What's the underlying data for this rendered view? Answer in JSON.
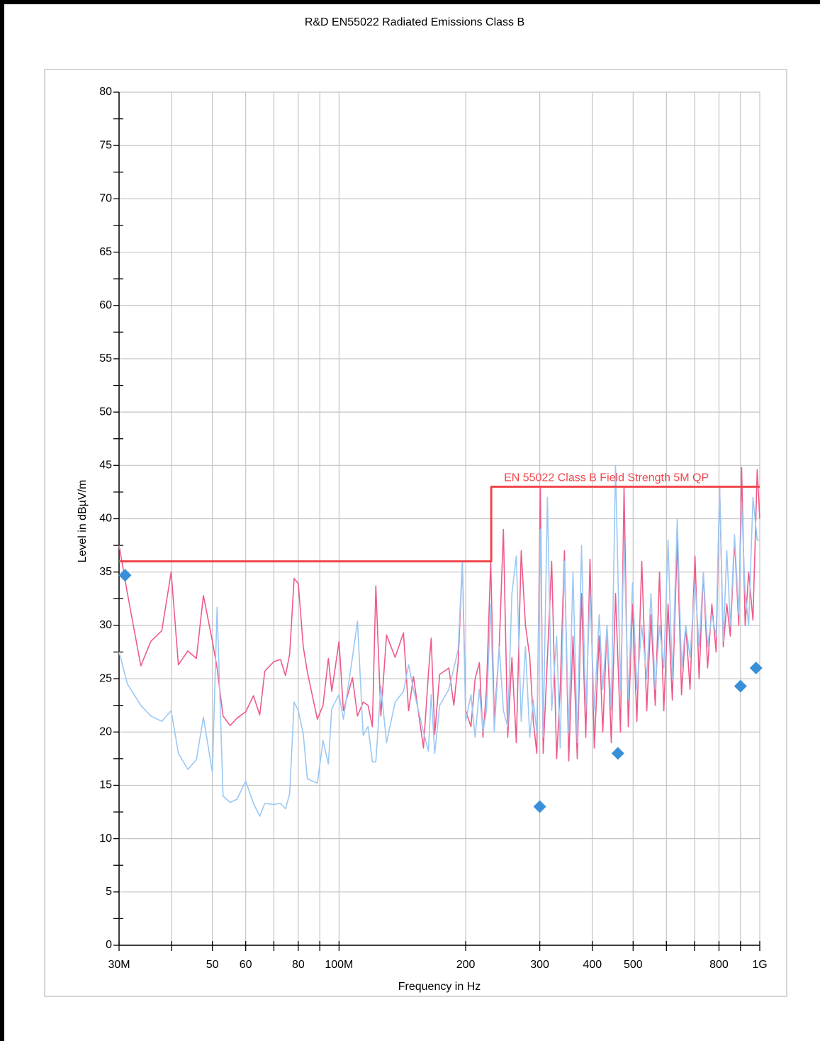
{
  "chart_data": {
    "type": "line",
    "title": "R&D EN55022 Radiated Emissions Class B",
    "xlabel": "Frequency in Hz",
    "ylabel": "Level in dBµV/m",
    "xscale": "log",
    "grid": true,
    "xlim": [
      30000000.0,
      1000000000.0
    ],
    "ylim": [
      0,
      80
    ],
    "xticks": [
      {
        "value": 30000000.0,
        "label": "30M"
      },
      {
        "value": 50000000.0,
        "label": "50"
      },
      {
        "value": 60000000.0,
        "label": "60"
      },
      {
        "value": 80000000.0,
        "label": "80"
      },
      {
        "value": 100000000.0,
        "label": "100M"
      },
      {
        "value": 200000000.0,
        "label": "200"
      },
      {
        "value": 300000000.0,
        "label": "300"
      },
      {
        "value": 400000000.0,
        "label": "400"
      },
      {
        "value": 500000000.0,
        "label": "500"
      },
      {
        "value": 800000000.0,
        "label": "800"
      },
      {
        "value": 1000000000.0,
        "label": "1G"
      }
    ],
    "xminor_ticks": [
      40000000.0,
      70000000.0,
      90000000.0,
      600000000.0,
      700000000.0,
      900000000.0
    ],
    "yticks": [
      0,
      5,
      10,
      15,
      20,
      25,
      30,
      35,
      40,
      45,
      50,
      55,
      60,
      65,
      70,
      75,
      80
    ],
    "yminor_ticks": [
      2.5,
      7.5,
      12.5,
      17.5,
      22.5,
      27.5,
      32.5,
      37.5,
      42.5,
      47.5,
      52.5,
      57.5,
      62.5,
      67.5,
      72.5,
      77.5
    ],
    "traces": {
      "x": [
        30000000.0,
        31400000.0,
        33800000.0,
        35700000.0,
        37900000.0,
        39900000.0,
        41500000.0,
        43700000.0,
        45800000.0,
        47600000.0,
        50000000.0,
        51300000.0,
        53000000.0,
        55100000.0,
        57200000.0,
        60000000.0,
        62600000.0,
        64800000.0,
        66600000.0,
        70000000.0,
        72600000.0,
        74600000.0,
        76300000.0,
        78200000.0,
        80000000.0,
        82200000.0,
        84100000.0,
        88800000.0,
        91600000.0,
        94300000.0,
        96100000.0,
        100000000.0,
        102400000.0,
        107600000.0,
        110600000.0,
        114100000.0,
        117200000.0,
        120000000.0,
        122300000.0,
        125700000.0,
        129700000.0,
        135900000.0,
        142300000.0,
        146300000.0,
        150300000.0,
        158700000.0,
        163100000.0,
        165600000.0,
        168800000.0,
        173500000.0,
        182400000.0,
        187500000.0,
        191900000.0,
        196400000.0,
        200000000.0,
        205800000.0,
        210600000.0,
        215600000.0,
        219800000.0,
        224100000.0,
        229400000.0,
        233900000.0,
        240300000.0,
        245900000.0,
        251700000.0,
        257600000.0,
        263800000.0,
        271000000.0,
        277400000.0,
        284000000.0,
        289600000.0,
        295100000.0,
        300900000.0,
        305600000.0,
        312800000.0,
        320200000.0,
        329000000.0,
        335500000.0,
        343400000.0,
        351500000.0,
        359800000.0,
        368300000.0,
        377000000.0,
        385900000.0,
        395000000.0,
        404300000.0,
        415400000.0,
        423500000.0,
        433500000.0,
        443700000.0,
        454200000.0,
        466700000.0,
        475800000.0,
        487000000.0,
        498500000.0,
        510300000.0,
        524300000.0,
        538800000.0,
        551400000.0,
        564400000.0,
        577800000.0,
        591400000.0,
        605300000.0,
        619600000.0,
        636600000.0,
        651600000.0,
        666900000.0,
        682600000.0,
        701400000.0,
        717500000.0,
        734400000.0,
        751600000.0,
        769300000.0,
        787500000.0,
        802900000.0,
        818800000.0,
        834900000.0,
        851200000.0,
        871000000.0,
        891600000.0,
        905600000.0,
        923300000.0,
        941300000.0,
        963400000.0,
        986100000.0,
        1000000000.0
      ],
      "series": [
        {
          "name": "pink",
          "color": "#ee5b8b",
          "values": [
            37.5,
            33,
            26.2,
            28.5,
            29.5,
            35,
            26.3,
            27.6,
            26.9,
            32.8,
            28.5,
            26,
            21.5,
            20.6,
            21.3,
            21.9,
            23.4,
            21.6,
            25.7,
            26.6,
            26.8,
            25.3,
            27.3,
            34.4,
            33.9,
            28,
            25.6,
            21.2,
            22.5,
            26.9,
            23.8,
            28.5,
            22,
            25.1,
            21.5,
            22.8,
            22.5,
            20.5,
            33.7,
            21.5,
            29.1,
            27,
            29.3,
            22,
            25.2,
            18.5,
            25.5,
            28.8,
            19.8,
            25.4,
            26,
            22.5,
            26.5,
            36,
            22,
            20.5,
            25,
            26.5,
            19.5,
            24,
            36,
            21,
            28,
            39,
            19.5,
            27,
            19,
            37,
            30,
            27,
            21,
            18,
            43,
            18,
            27,
            36,
            17.5,
            24,
            37,
            17.3,
            29,
            17.5,
            33,
            19.5,
            36.2,
            18.5,
            29,
            20,
            30,
            19,
            33,
            20,
            43,
            20.5,
            32,
            21,
            36,
            22,
            31,
            22.5,
            35,
            22,
            32,
            23,
            38,
            23.5,
            30,
            24,
            36.5,
            25,
            35,
            26,
            32,
            27.5,
            43,
            28,
            32,
            29,
            38,
            30,
            44.8,
            30,
            35,
            30.5,
            44.6,
            40
          ]
        },
        {
          "name": "blue",
          "color": "#9cc8f3",
          "values": [
            27.5,
            24.5,
            22.5,
            21.5,
            21,
            22,
            18,
            16.5,
            17.4,
            21.4,
            16.2,
            31.7,
            14,
            13.4,
            13.7,
            15.4,
            13.3,
            12.1,
            13.3,
            13.2,
            13.3,
            12.8,
            14.2,
            22.8,
            22,
            19.8,
            15.6,
            15.2,
            19.2,
            17,
            22.2,
            23.5,
            21.2,
            27,
            30.4,
            19.7,
            20.5,
            17.2,
            17.2,
            24.3,
            19,
            22.8,
            23.8,
            26.3,
            24,
            20,
            18.2,
            23.5,
            18,
            22.5,
            24,
            26,
            27.7,
            36,
            21,
            23.5,
            19.5,
            24,
            20,
            22,
            32,
            20,
            28,
            22,
            20.5,
            33,
            36.5,
            21,
            28,
            19.5,
            23,
            20,
            39,
            19.5,
            42,
            22,
            29,
            18.5,
            36,
            20,
            35,
            19,
            37.5,
            22,
            33,
            22,
            31,
            24,
            30,
            22,
            45,
            24,
            38,
            23,
            34,
            24,
            30,
            25,
            33,
            24,
            30,
            26,
            38,
            25,
            40,
            26,
            30,
            27,
            34,
            28,
            35,
            28,
            31,
            29,
            43,
            28.5,
            37,
            30,
            38.5,
            31,
            41.5,
            33,
            30,
            42,
            38,
            38
          ]
        }
      ]
    },
    "limit": {
      "name": "EN 55022 Class B Field Strength 5M QP",
      "color": "#f0474d",
      "x": [
        30000000.0,
        230000000.0,
        230000000.0,
        1000000000.0
      ],
      "values": [
        36,
        36,
        43,
        43
      ]
    },
    "markers": {
      "color": "#3a8fd9",
      "x": [
        31000000.0,
        300000000.0,
        460000000.0,
        900000000.0,
        980000000.0
      ],
      "values": [
        34.7,
        13,
        18,
        24.3,
        26
      ]
    }
  }
}
